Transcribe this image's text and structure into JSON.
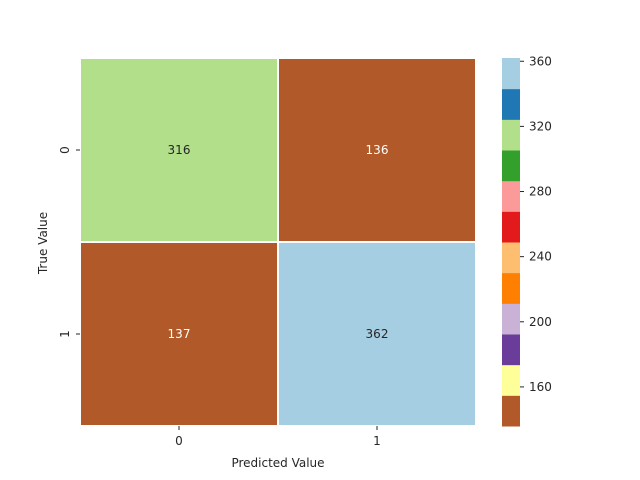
{
  "chart_data": {
    "type": "heatmap",
    "title": "",
    "xlabel": "Predicted Value",
    "ylabel": "True Value",
    "x_categories": [
      "0",
      "1"
    ],
    "y_categories": [
      "0",
      "1"
    ],
    "values": [
      [
        316,
        136
      ],
      [
        137,
        362
      ]
    ],
    "annotations": [
      "316",
      "136",
      "137",
      "362"
    ],
    "colorbar": {
      "min": 136,
      "max": 362,
      "ticks": [
        160,
        200,
        240,
        280,
        320,
        360
      ],
      "tick_labels": [
        "160",
        "200",
        "240",
        "280",
        "320",
        "360"
      ],
      "colors": [
        "#b15928",
        "#ffff99",
        "#6a3d9a",
        "#cab2d6",
        "#ff7f00",
        "#fdbf6f",
        "#e31a1c",
        "#fb9a99",
        "#33a02c",
        "#b2df8a",
        "#1f78b4",
        "#a6cee3"
      ]
    },
    "cell_border_color": "#ffffff",
    "grid": false
  }
}
